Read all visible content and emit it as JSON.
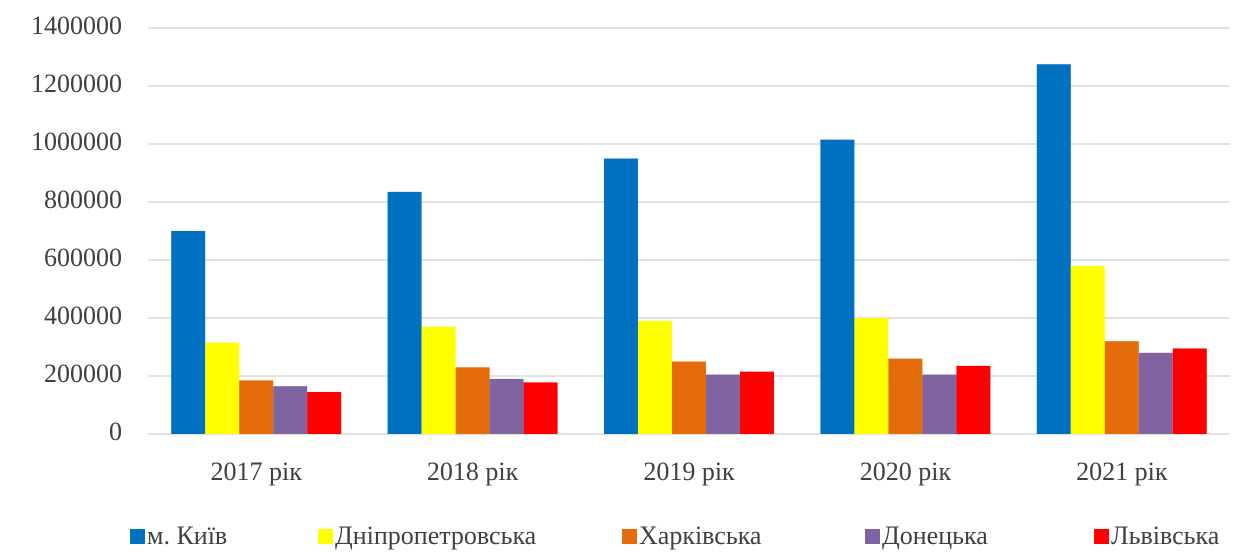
{
  "chart_data": {
    "type": "bar",
    "categories": [
      "2017 рік",
      "2018 рік",
      "2019 рік",
      "2020 рік",
      "2021 рік"
    ],
    "series": [
      {
        "name": "м. Київ",
        "color": "#0070c0",
        "values": [
          700000,
          835000,
          950000,
          1015000,
          1275000
        ]
      },
      {
        "name": "Дніпропетровська",
        "color": "#ffff00",
        "values": [
          315000,
          370000,
          390000,
          400000,
          580000
        ]
      },
      {
        "name": "Харківська",
        "color": "#e46c0a",
        "values": [
          185000,
          230000,
          250000,
          260000,
          320000
        ]
      },
      {
        "name": "Донецька",
        "color": "#8064a2",
        "values": [
          165000,
          190000,
          205000,
          205000,
          280000
        ]
      },
      {
        "name": "Львівська",
        "color": "#ff0000",
        "values": [
          145000,
          178000,
          215000,
          235000,
          295000
        ]
      }
    ],
    "ylim": [
      0,
      1400000
    ],
    "yticks": [
      0,
      200000,
      400000,
      600000,
      800000,
      1000000,
      1200000,
      1400000
    ],
    "grid": true,
    "legend": "bottom"
  }
}
